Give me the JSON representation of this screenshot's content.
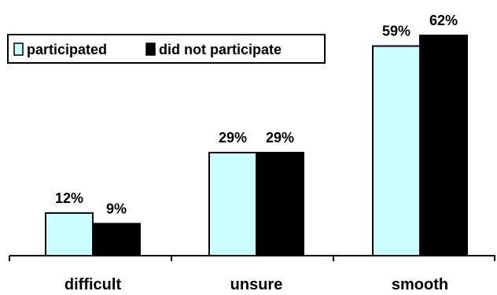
{
  "chart_data": {
    "type": "bar",
    "categories": [
      "difficult",
      "unsure",
      "smooth"
    ],
    "series": [
      {
        "name": "participated",
        "color": "#ccffff",
        "values": [
          12,
          29,
          59
        ],
        "labels": [
          "12%",
          "29%",
          "59%"
        ]
      },
      {
        "name": "did not participate",
        "color": "#000000",
        "values": [
          9,
          29,
          62
        ],
        "labels": [
          "9%",
          "29%",
          "62%"
        ]
      }
    ],
    "ylim": [
      0,
      62
    ],
    "grid": false,
    "legend": "top-left"
  }
}
